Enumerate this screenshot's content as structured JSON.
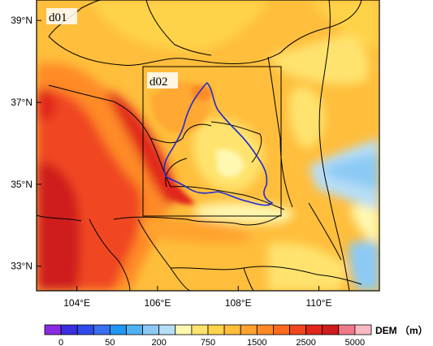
{
  "map": {
    "lat_labels": [
      "39°N",
      "37°N",
      "35°N",
      "33°N"
    ],
    "lon_labels": [
      "104°E",
      "106°E",
      "108°E",
      "110°E"
    ],
    "lat_values": [
      39,
      37,
      35,
      33
    ],
    "lon_values": [
      104,
      106,
      108,
      110
    ],
    "extent": {
      "lon": [
        103.0,
        111.5
      ],
      "lat": [
        32.4,
        39.5
      ]
    },
    "domain_labels": {
      "outer": "d01",
      "inner": "d02"
    },
    "inner_domain": {
      "lon": [
        105.8,
        109.3
      ],
      "lat": [
        34.25,
        37.05
      ]
    }
  },
  "colorbar": {
    "title": "DEM （m）",
    "labels": [
      "0",
      "50",
      "200",
      "750",
      "1500",
      "2500",
      "5000"
    ],
    "colors": [
      "#8a2be2",
      "#3a2ee0",
      "#2f4ae8",
      "#3a6ff0",
      "#2196f3",
      "#4fb3f3",
      "#8ccaf5",
      "#b7def7",
      "#fff8b0",
      "#ffe36e",
      "#ffd34a",
      "#ffbe3c",
      "#ffa32e",
      "#ff8a25",
      "#ff6a1f",
      "#f04720",
      "#e1261c",
      "#cf1d1d",
      "#f07a8a",
      "#f9b9c3"
    ]
  }
}
